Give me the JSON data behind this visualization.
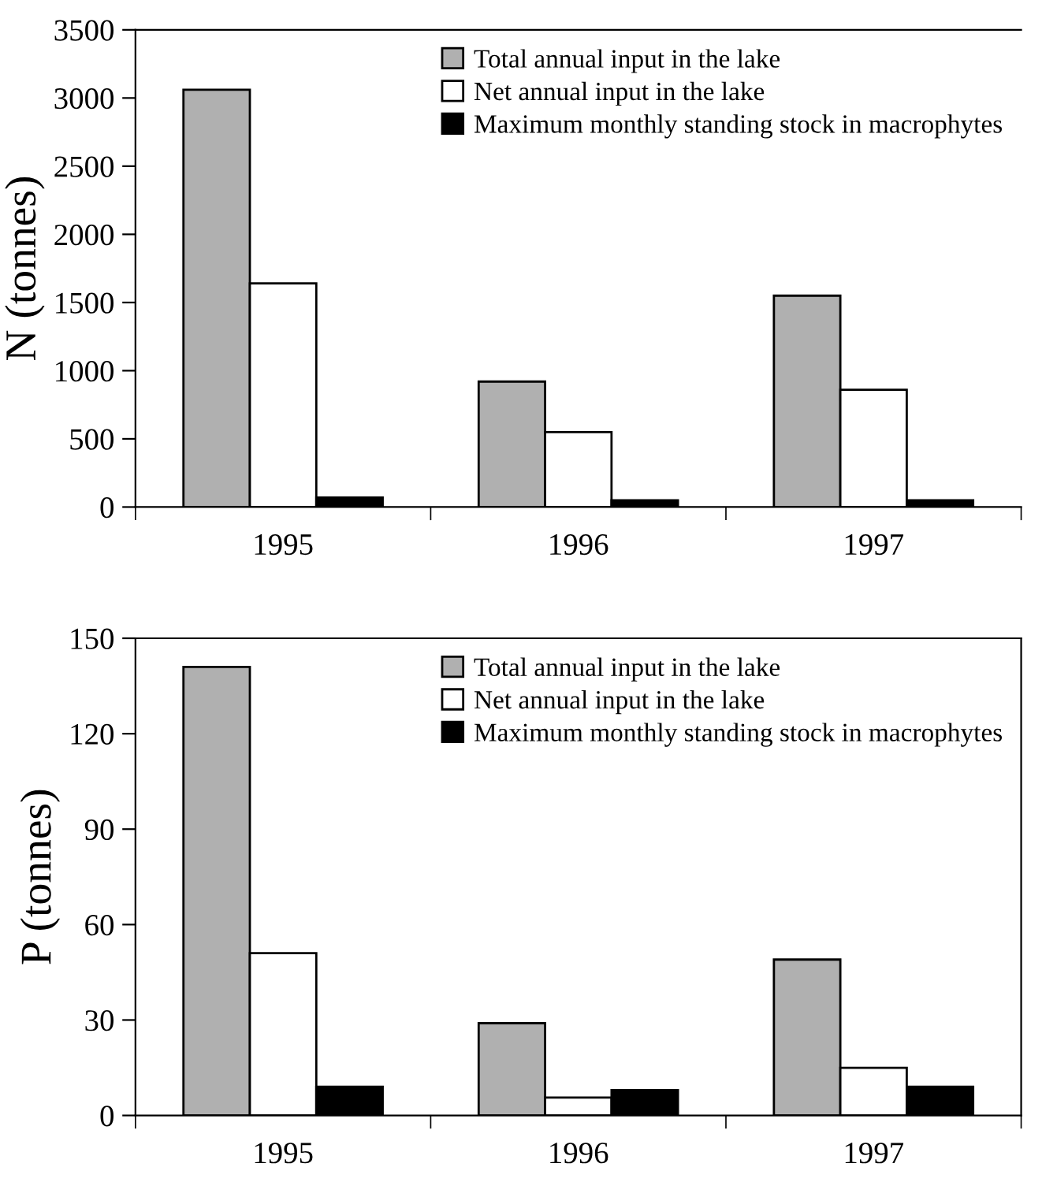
{
  "chart_data": [
    {
      "type": "bar",
      "ylabel": "N (tonnes)",
      "categories": [
        "1995",
        "1996",
        "1997"
      ],
      "ylim": [
        0,
        3500
      ],
      "yticks": [
        0,
        500,
        1000,
        1500,
        2000,
        2500,
        3000,
        3500
      ],
      "legend": "top right",
      "grid": false,
      "series": [
        {
          "name": "Total annual input in the lake",
          "color": "#b0b0b0",
          "values": [
            3060,
            920,
            1550
          ]
        },
        {
          "name": "Net annual input in the lake",
          "color": "#ffffff",
          "values": [
            1640,
            550,
            860
          ]
        },
        {
          "name": "Maximum monthly standing stock in macrophytes",
          "color": "#000000",
          "values": [
            70,
            50,
            50
          ]
        }
      ]
    },
    {
      "type": "bar",
      "ylabel": "P (tonnes)",
      "categories": [
        "1995",
        "1996",
        "1997"
      ],
      "ylim": [
        0,
        150
      ],
      "yticks": [
        0,
        30,
        60,
        90,
        120,
        150
      ],
      "legend": "top right",
      "grid": false,
      "series": [
        {
          "name": "Total annual input in the lake",
          "color": "#b0b0b0",
          "values": [
            141,
            29,
            49
          ]
        },
        {
          "name": "Net annual input in the lake",
          "color": "#ffffff",
          "values": [
            51,
            5.6,
            15
          ]
        },
        {
          "name": "Maximum monthly standing stock in macrophytes",
          "color": "#000000",
          "values": [
            9,
            8,
            9
          ]
        }
      ]
    }
  ]
}
